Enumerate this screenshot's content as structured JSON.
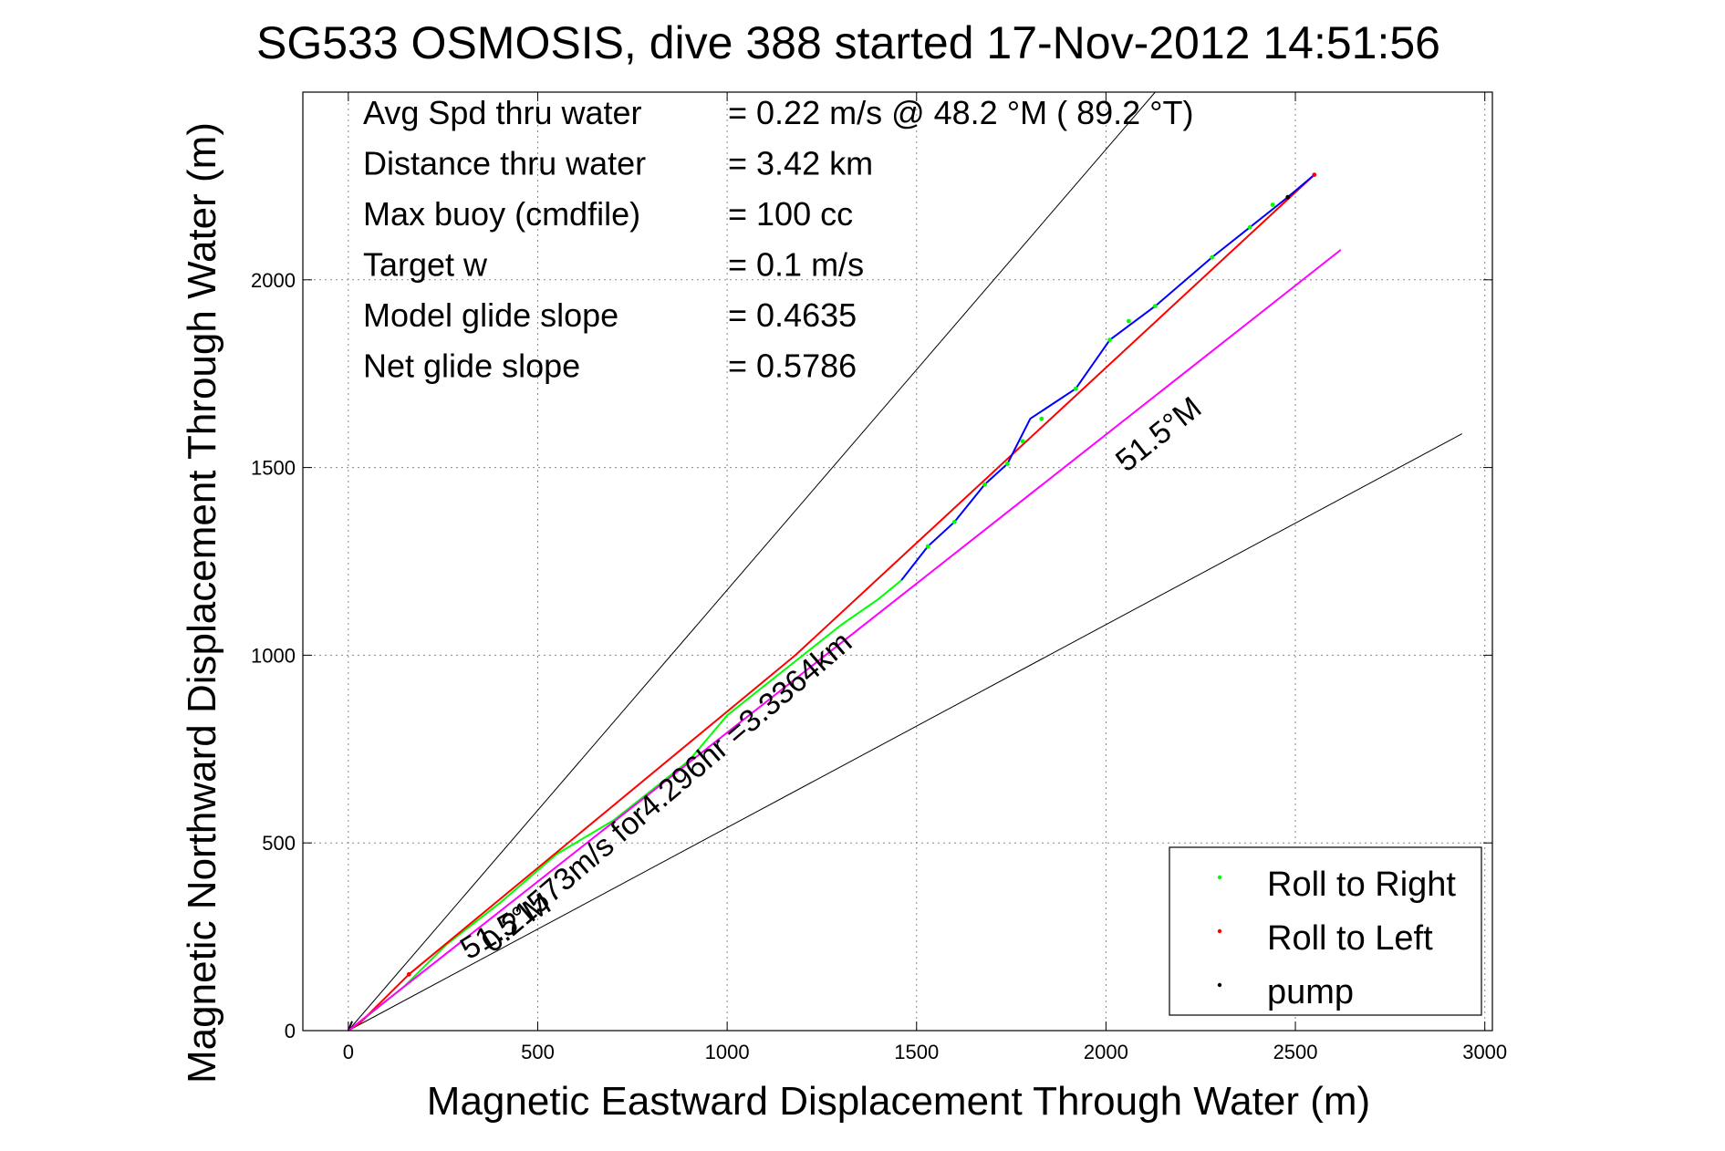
{
  "chart_data": {
    "type": "line",
    "title": "SG533 OSMOSIS, dive 388 started 17-Nov-2012 14:51:56",
    "xlabel": "Magnetic Eastward Displacement Through Water (m)",
    "ylabel": "Magnetic Northward Displacement Through Water (m)",
    "xlim": [
      -120,
      3020
    ],
    "ylim": [
      0,
      2500
    ],
    "xticks": [
      0,
      500,
      1000,
      1500,
      2000,
      2500,
      3000
    ],
    "yticks": [
      0,
      500,
      1000,
      1500,
      2000
    ],
    "grid": true,
    "legend_position": "bottom-right",
    "stats": [
      {
        "label": "Avg Spd thru water",
        "value": "=  0.22 m/s @  48.2 °M ( 89.2 °T)"
      },
      {
        "label": "Distance thru water",
        "value": "=  3.42 km"
      },
      {
        "label": "Max buoy (cmdfile)",
        "value": "= 100 cc"
      },
      {
        "label": "Target w",
        "value": "= 0.1 m/s"
      },
      {
        "label": "Model glide slope",
        "value": "= 0.4635"
      },
      {
        "label": "Net glide slope",
        "value": "= 0.5786"
      }
    ],
    "annotations": {
      "speed_label": "0.21573m/s for4.296hr =3.3364km",
      "heading_label_upper": "51.5°M",
      "heading_label_lower": "51.5°M"
    },
    "series": [
      {
        "name": "Roll to Right",
        "color": "#00ff00",
        "points": [
          [
            0,
            0
          ],
          [
            40,
            30
          ],
          [
            150,
            120
          ],
          [
            260,
            230
          ],
          [
            400,
            340
          ],
          [
            550,
            470
          ],
          [
            700,
            560
          ],
          [
            800,
            640
          ],
          [
            900,
            720
          ],
          [
            1000,
            840
          ],
          [
            1100,
            920
          ],
          [
            1200,
            1000
          ],
          [
            1300,
            1080
          ],
          [
            1400,
            1150
          ],
          [
            1460,
            1200
          ]
        ]
      },
      {
        "name": "Roll to Left",
        "color": "#ff0000",
        "points": [
          [
            0,
            0
          ],
          [
            30,
            20
          ],
          [
            160,
            150
          ],
          [
            1180,
            1000
          ],
          [
            2550,
            2280
          ]
        ]
      },
      {
        "name": "pump",
        "color": "#000000",
        "points": [
          [
            0,
            0
          ],
          [
            10,
            25
          ]
        ]
      },
      {
        "name": "",
        "color": "#0000ff",
        "points": [
          [
            1460,
            1200
          ],
          [
            1530,
            1290
          ],
          [
            1600,
            1355
          ],
          [
            1680,
            1455
          ],
          [
            1740,
            1510
          ],
          [
            1800,
            1630
          ],
          [
            1920,
            1710
          ],
          [
            2010,
            1840
          ],
          [
            2130,
            1930
          ],
          [
            2280,
            2060
          ],
          [
            2380,
            2140
          ],
          [
            2480,
            2220
          ],
          [
            2550,
            2280
          ]
        ]
      },
      {
        "name": "",
        "color": "#ff00ff",
        "points": [
          [
            0,
            0
          ],
          [
            2620,
            2080
          ]
        ]
      }
    ],
    "heading_lines": [
      {
        "color": "#000000",
        "points": [
          [
            0,
            0
          ],
          [
            2130,
            2500
          ]
        ]
      },
      {
        "color": "#000000",
        "points": [
          [
            0,
            0
          ],
          [
            2940,
            1590
          ]
        ]
      }
    ],
    "marker_points": {
      "Roll to Right": [
        [
          1530,
          1290
        ],
        [
          1600,
          1355
        ],
        [
          1680,
          1455
        ],
        [
          1740,
          1510
        ],
        [
          1780,
          1570
        ],
        [
          1830,
          1630
        ],
        [
          1920,
          1710
        ],
        [
          2010,
          1840
        ],
        [
          2060,
          1890
        ],
        [
          2130,
          1930
        ],
        [
          2280,
          2060
        ],
        [
          2380,
          2140
        ],
        [
          2440,
          2200
        ]
      ],
      "Roll to Left": [
        [
          160,
          150
        ],
        [
          2550,
          2280
        ]
      ],
      "pump": [
        [
          2480,
          2220
        ]
      ]
    }
  }
}
